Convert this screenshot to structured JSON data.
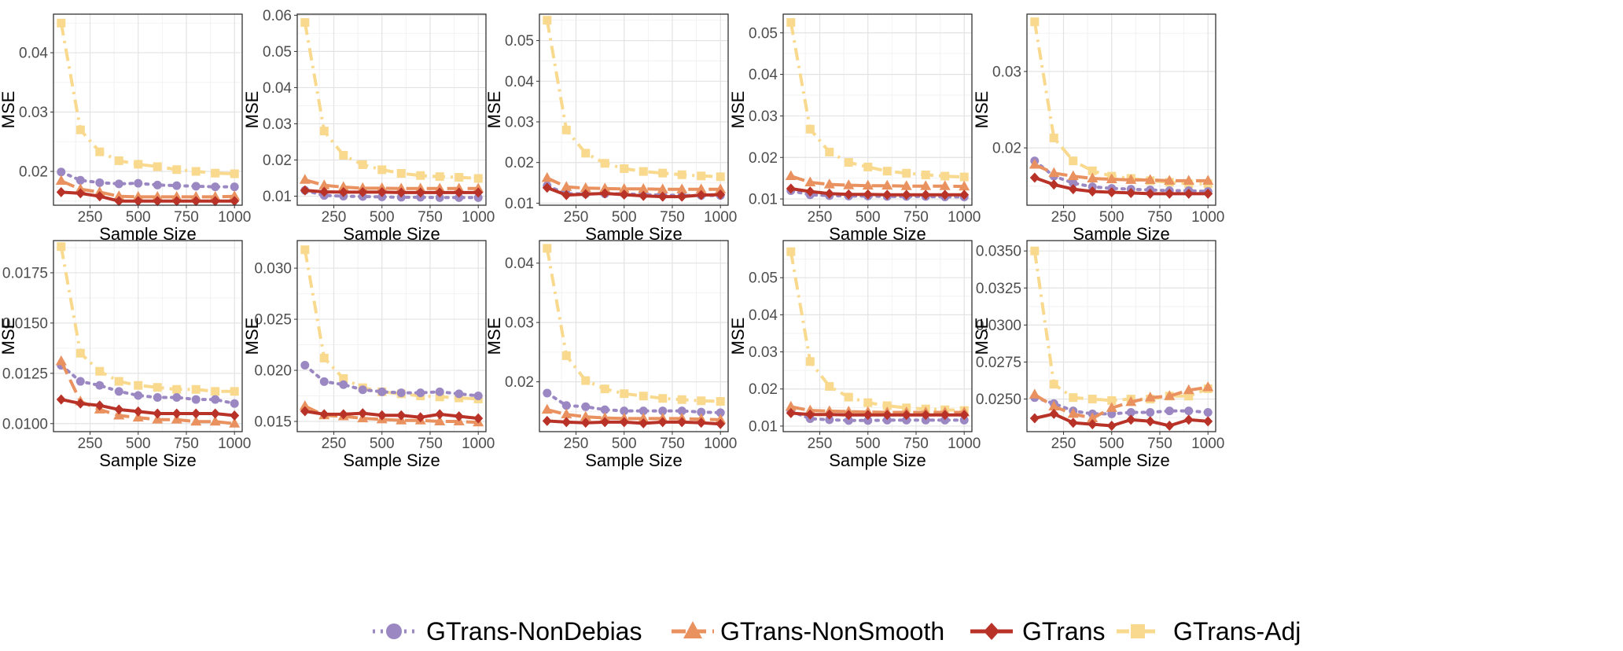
{
  "legend": [
    {
      "name": "GTrans-NonDebias",
      "color": "#9b88c3",
      "dash": "3,7",
      "marker": "circle"
    },
    {
      "name": "GTrans-NonSmooth",
      "color": "#e9915f",
      "dash": "18,8",
      "marker": "triangle"
    },
    {
      "name": "GTrans",
      "color": "#b83227",
      "dash": "",
      "marker": "diamond"
    },
    {
      "name": "GTrans-Adj",
      "color": "#f8d98e",
      "dash": "16,7,3,7",
      "marker": "square"
    }
  ],
  "chart_data": [
    {
      "type": "line",
      "xlabel": "Sample Size",
      "ylabel": "MSE",
      "x": [
        100,
        200,
        300,
        400,
        500,
        600,
        700,
        800,
        900,
        1000
      ],
      "xticks": [
        250,
        500,
        750,
        1000
      ],
      "xlim": [
        60,
        1040
      ],
      "ylim": [
        0.0143,
        0.0465
      ],
      "yticks": [
        0.02,
        0.03,
        0.04
      ],
      "ytick_labels": [
        "0.02",
        "0.03",
        "0.04"
      ],
      "series": [
        {
          "name": "GTrans-NonDebias",
          "values": [
            0.0199,
            0.0185,
            0.0181,
            0.0179,
            0.018,
            0.0177,
            0.0176,
            0.0175,
            0.0174,
            0.0174
          ]
        },
        {
          "name": "GTrans-NonSmooth",
          "values": [
            0.0184,
            0.017,
            0.0165,
            0.0158,
            0.0157,
            0.0157,
            0.0157,
            0.0157,
            0.0157,
            0.0158
          ]
        },
        {
          "name": "GTrans",
          "values": [
            0.0165,
            0.0163,
            0.0158,
            0.015,
            0.015,
            0.015,
            0.015,
            0.015,
            0.015,
            0.015
          ]
        },
        {
          "name": "GTrans-Adj",
          "values": [
            0.045,
            0.027,
            0.0233,
            0.0218,
            0.0212,
            0.0208,
            0.0203,
            0.02,
            0.0197,
            0.0196
          ]
        }
      ]
    },
    {
      "type": "line",
      "xlabel": "Sample Size",
      "ylabel": "MSE",
      "x": [
        100,
        200,
        300,
        400,
        500,
        600,
        700,
        800,
        900,
        1000
      ],
      "xticks": [
        250,
        500,
        750,
        1000
      ],
      "xlim": [
        60,
        1040
      ],
      "ylim": [
        0.0075,
        0.0603
      ],
      "yticks": [
        0.01,
        0.02,
        0.03,
        0.04,
        0.05,
        0.06
      ],
      "ytick_labels": [
        "0.01",
        "0.02",
        "0.03",
        "0.04",
        "0.05",
        "0.06"
      ],
      "series": [
        {
          "name": "GTrans-NonDebias",
          "values": [
            0.0116,
            0.0102,
            0.01,
            0.0099,
            0.0098,
            0.0097,
            0.0097,
            0.0096,
            0.0096,
            0.0096
          ]
        },
        {
          "name": "GTrans-NonSmooth",
          "values": [
            0.0145,
            0.013,
            0.0125,
            0.0122,
            0.0122,
            0.0121,
            0.0121,
            0.0121,
            0.0121,
            0.0121
          ]
        },
        {
          "name": "GTrans",
          "values": [
            0.0116,
            0.0112,
            0.0111,
            0.0111,
            0.0111,
            0.011,
            0.011,
            0.011,
            0.011,
            0.011
          ]
        },
        {
          "name": "GTrans-Adj",
          "values": [
            0.058,
            0.028,
            0.0213,
            0.0187,
            0.0173,
            0.0163,
            0.0157,
            0.0154,
            0.0152,
            0.0149
          ]
        }
      ]
    },
    {
      "type": "line",
      "xlabel": "Sample Size",
      "ylabel": "MSE",
      "x": [
        100,
        200,
        300,
        400,
        500,
        600,
        700,
        800,
        900,
        1000
      ],
      "xticks": [
        250,
        500,
        750,
        1000
      ],
      "xlim": [
        60,
        1040
      ],
      "ylim": [
        0.0095,
        0.0565
      ],
      "yticks": [
        0.01,
        0.02,
        0.03,
        0.04,
        0.05
      ],
      "ytick_labels": [
        "0.01",
        "0.02",
        "0.03",
        "0.04",
        "0.05"
      ],
      "series": [
        {
          "name": "GTrans-NonDebias",
          "values": [
            0.0143,
            0.0123,
            0.0123,
            0.0123,
            0.0123,
            0.0121,
            0.012,
            0.0119,
            0.0119,
            0.0119
          ]
        },
        {
          "name": "GTrans-NonSmooth",
          "values": [
            0.0162,
            0.014,
            0.0137,
            0.0136,
            0.0135,
            0.0135,
            0.0134,
            0.0134,
            0.0134,
            0.0134
          ]
        },
        {
          "name": "GTrans",
          "values": [
            0.0138,
            0.012,
            0.0122,
            0.0124,
            0.0121,
            0.0118,
            0.0116,
            0.0116,
            0.012,
            0.0121
          ]
        },
        {
          "name": "GTrans-Adj",
          "values": [
            0.055,
            0.028,
            0.0223,
            0.0198,
            0.0185,
            0.0178,
            0.0174,
            0.017,
            0.0167,
            0.0165
          ]
        }
      ]
    },
    {
      "type": "line",
      "xlabel": "Sample Size",
      "ylabel": "MSE",
      "x": [
        100,
        200,
        300,
        400,
        500,
        600,
        700,
        800,
        900,
        1000
      ],
      "xticks": [
        250,
        500,
        750,
        1000
      ],
      "xlim": [
        60,
        1040
      ],
      "ylim": [
        0.0085,
        0.0545
      ],
      "yticks": [
        0.01,
        0.02,
        0.03,
        0.04,
        0.05
      ],
      "ytick_labels": [
        "0.01",
        "0.02",
        "0.03",
        "0.04",
        "0.05"
      ],
      "series": [
        {
          "name": "GTrans-NonDebias",
          "values": [
            0.012,
            0.011,
            0.0108,
            0.0107,
            0.0107,
            0.0106,
            0.0106,
            0.0106,
            0.0105,
            0.0105
          ]
        },
        {
          "name": "GTrans-NonSmooth",
          "values": [
            0.0155,
            0.014,
            0.0135,
            0.0133,
            0.0132,
            0.0132,
            0.0131,
            0.0131,
            0.0131,
            0.013
          ]
        },
        {
          "name": "GTrans",
          "values": [
            0.0125,
            0.0118,
            0.0113,
            0.0111,
            0.0111,
            0.011,
            0.011,
            0.011,
            0.011,
            0.011
          ]
        },
        {
          "name": "GTrans-Adj",
          "values": [
            0.0525,
            0.0268,
            0.0213,
            0.0188,
            0.0177,
            0.0167,
            0.0162,
            0.0158,
            0.0155,
            0.0153
          ]
        }
      ]
    },
    {
      "type": "line",
      "xlabel": "Sample Size",
      "ylabel": "MSE",
      "x": [
        100,
        200,
        300,
        400,
        500,
        600,
        700,
        800,
        900,
        1000
      ],
      "xticks": [
        250,
        500,
        750,
        1000
      ],
      "xlim": [
        60,
        1040
      ],
      "ylim": [
        0.0125,
        0.0375
      ],
      "yticks": [
        0.02,
        0.03
      ],
      "ytick_labels": [
        "0.02",
        "0.03"
      ],
      "series": [
        {
          "name": "GTrans-NonDebias",
          "values": [
            0.0183,
            0.0163,
            0.0154,
            0.0149,
            0.0147,
            0.0146,
            0.0145,
            0.0144,
            0.0144,
            0.0143
          ]
        },
        {
          "name": "GTrans-NonSmooth",
          "values": [
            0.0178,
            0.0167,
            0.0163,
            0.016,
            0.0159,
            0.0158,
            0.0158,
            0.0157,
            0.0157,
            0.0157
          ]
        },
        {
          "name": "GTrans",
          "values": [
            0.0161,
            0.0152,
            0.0146,
            0.0143,
            0.0142,
            0.0141,
            0.014,
            0.014,
            0.014,
            0.014
          ]
        },
        {
          "name": "GTrans-Adj",
          "values": [
            0.0365,
            0.0213,
            0.0183,
            0.017,
            0.0163,
            0.016,
            0.0157,
            0.0155,
            0.0153,
            0.0153
          ]
        }
      ]
    },
    {
      "type": "line",
      "xlabel": "Sample Size",
      "ylabel": "MSE",
      "x": [
        100,
        200,
        300,
        400,
        500,
        600,
        700,
        800,
        900,
        1000
      ],
      "xticks": [
        250,
        500,
        750,
        1000
      ],
      "xlim": [
        60,
        1040
      ],
      "ylim": [
        0.0096,
        0.0191
      ],
      "yticks": [
        0.01,
        0.0125,
        0.015,
        0.0175
      ],
      "ytick_labels": [
        "0.0100",
        "0.0125",
        "0.0150",
        "0.0175"
      ],
      "series": [
        {
          "name": "GTrans-NonDebias",
          "values": [
            0.0129,
            0.0121,
            0.0119,
            0.0116,
            0.0114,
            0.0113,
            0.0113,
            0.0112,
            0.0112,
            0.011
          ]
        },
        {
          "name": "GTrans-NonSmooth",
          "values": [
            0.0131,
            0.0111,
            0.0107,
            0.0104,
            0.0103,
            0.0102,
            0.0102,
            0.0101,
            0.0101,
            0.01
          ]
        },
        {
          "name": "GTrans",
          "values": [
            0.0112,
            0.011,
            0.0109,
            0.0107,
            0.0106,
            0.0105,
            0.0105,
            0.0105,
            0.0105,
            0.0104
          ]
        },
        {
          "name": "GTrans-Adj",
          "values": [
            0.0188,
            0.0135,
            0.0126,
            0.0121,
            0.0119,
            0.0118,
            0.0117,
            0.0117,
            0.0116,
            0.0116
          ]
        }
      ]
    },
    {
      "type": "line",
      "xlabel": "Sample Size",
      "ylabel": "MSE",
      "x": [
        100,
        200,
        300,
        400,
        500,
        600,
        700,
        800,
        900,
        1000
      ],
      "xticks": [
        250,
        500,
        750,
        1000
      ],
      "xlim": [
        60,
        1040
      ],
      "ylim": [
        0.014,
        0.0327
      ],
      "yticks": [
        0.015,
        0.02,
        0.025,
        0.03
      ],
      "ytick_labels": [
        "0.015",
        "0.020",
        "0.025",
        "0.030"
      ],
      "series": [
        {
          "name": "GTrans-NonDebias",
          "values": [
            0.0205,
            0.0189,
            0.0186,
            0.0181,
            0.0179,
            0.0178,
            0.0178,
            0.0179,
            0.0177,
            0.0175
          ]
        },
        {
          "name": "GTrans-NonSmooth",
          "values": [
            0.0165,
            0.0156,
            0.0155,
            0.0153,
            0.0152,
            0.0151,
            0.0151,
            0.015,
            0.015,
            0.0149
          ]
        },
        {
          "name": "GTrans",
          "values": [
            0.016,
            0.0157,
            0.0157,
            0.0158,
            0.0156,
            0.0156,
            0.0154,
            0.0157,
            0.0155,
            0.0153
          ]
        },
        {
          "name": "GTrans-Adj",
          "values": [
            0.0318,
            0.0212,
            0.0192,
            0.0183,
            0.0179,
            0.0177,
            0.0175,
            0.0174,
            0.0173,
            0.0172
          ]
        }
      ]
    },
    {
      "type": "line",
      "xlabel": "Sample Size",
      "ylabel": "MSE",
      "x": [
        100,
        200,
        300,
        400,
        500,
        600,
        700,
        800,
        900,
        1000
      ],
      "xticks": [
        250,
        500,
        750,
        1000
      ],
      "xlim": [
        60,
        1040
      ],
      "ylim": [
        0.0116,
        0.0438
      ],
      "yticks": [
        0.02,
        0.03,
        0.04
      ],
      "ytick_labels": [
        "0.02",
        "0.03",
        "0.04"
      ],
      "series": [
        {
          "name": "GTrans-NonDebias",
          "values": [
            0.0181,
            0.016,
            0.0158,
            0.0153,
            0.0151,
            0.0151,
            0.0151,
            0.0151,
            0.0149,
            0.0148
          ]
        },
        {
          "name": "GTrans-NonSmooth",
          "values": [
            0.0153,
            0.0145,
            0.0141,
            0.0139,
            0.0138,
            0.0138,
            0.0138,
            0.0138,
            0.0137,
            0.0136
          ]
        },
        {
          "name": "GTrans",
          "values": [
            0.0134,
            0.0132,
            0.0131,
            0.0132,
            0.0132,
            0.013,
            0.0132,
            0.0132,
            0.0131,
            0.0129
          ]
        },
        {
          "name": "GTrans-Adj",
          "values": [
            0.0425,
            0.0244,
            0.0202,
            0.0188,
            0.018,
            0.0176,
            0.0172,
            0.017,
            0.0168,
            0.0167
          ]
        }
      ]
    },
    {
      "type": "line",
      "xlabel": "Sample Size",
      "ylabel": "MSE",
      "x": [
        100,
        200,
        300,
        400,
        500,
        600,
        700,
        800,
        900,
        1000
      ],
      "xticks": [
        250,
        500,
        750,
        1000
      ],
      "xlim": [
        60,
        1040
      ],
      "ylim": [
        0.0085,
        0.06
      ],
      "yticks": [
        0.01,
        0.02,
        0.03,
        0.04,
        0.05
      ],
      "ytick_labels": [
        "0.01",
        "0.02",
        "0.03",
        "0.04",
        "0.05"
      ],
      "series": [
        {
          "name": "GTrans-NonDebias",
          "values": [
            0.014,
            0.012,
            0.0117,
            0.0115,
            0.0115,
            0.0116,
            0.0116,
            0.0116,
            0.0116,
            0.0116
          ]
        },
        {
          "name": "GTrans-NonSmooth",
          "values": [
            0.0152,
            0.0142,
            0.014,
            0.0139,
            0.0138,
            0.0137,
            0.0137,
            0.0137,
            0.0137,
            0.0137
          ]
        },
        {
          "name": "GTrans",
          "values": [
            0.0135,
            0.0131,
            0.0131,
            0.013,
            0.013,
            0.013,
            0.013,
            0.013,
            0.013,
            0.013
          ]
        },
        {
          "name": "GTrans-Adj",
          "values": [
            0.057,
            0.0274,
            0.0207,
            0.0178,
            0.0163,
            0.0155,
            0.0149,
            0.0146,
            0.0144,
            0.0142
          ]
        }
      ]
    },
    {
      "type": "line",
      "xlabel": "Sample Size",
      "ylabel": "MSE",
      "x": [
        100,
        200,
        300,
        400,
        500,
        600,
        700,
        800,
        900,
        1000
      ],
      "xticks": [
        250,
        500,
        750,
        1000
      ],
      "xlim": [
        60,
        1040
      ],
      "ylim": [
        0.0228,
        0.0357
      ],
      "yticks": [
        0.025,
        0.0275,
        0.03,
        0.0325,
        0.035
      ],
      "ytick_labels": [
        "0.0250",
        "0.0275",
        "0.0300",
        "0.0325",
        "0.0350"
      ],
      "series": [
        {
          "name": "GTrans-NonDebias",
          "values": [
            0.0251,
            0.0247,
            0.0242,
            0.024,
            0.024,
            0.0241,
            0.0241,
            0.0242,
            0.0242,
            0.0241
          ]
        },
        {
          "name": "GTrans-NonSmooth",
          "values": [
            0.0253,
            0.0245,
            0.024,
            0.0237,
            0.0244,
            0.0248,
            0.0251,
            0.0252,
            0.0256,
            0.0258
          ]
        },
        {
          "name": "GTrans",
          "values": [
            0.0237,
            0.024,
            0.0234,
            0.0233,
            0.0232,
            0.0236,
            0.0235,
            0.0232,
            0.0236,
            0.0235
          ]
        },
        {
          "name": "GTrans-Adj",
          "values": [
            0.035,
            0.026,
            0.0251,
            0.025,
            0.0249,
            0.025,
            0.025,
            0.0252,
            0.0252,
            0.0257
          ]
        }
      ]
    }
  ]
}
